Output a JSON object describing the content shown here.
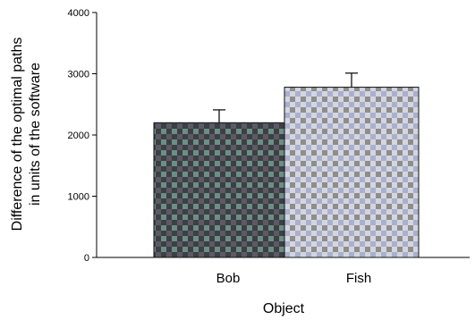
{
  "chart_data": {
    "type": "bar",
    "categories": [
      "Bob",
      "Fish"
    ],
    "values": [
      2200,
      2780
    ],
    "errors": [
      210,
      230
    ],
    "xlabel": "Object",
    "ylabel_line1": "Difference of the optimal paths",
    "ylabel_line2": "in units of the software",
    "ylim": [
      0,
      4000
    ],
    "yticks": [
      "0",
      "1000",
      "2000",
      "3000",
      "4000"
    ],
    "grid": false,
    "legend": "none",
    "colors": {
      "bob_fill_dark": "#4a4a4a",
      "bob_fill_light": "#5e8a86",
      "fish_fill_dark": "#8c8c8c",
      "fish_fill_light": "#c9ccd8"
    }
  }
}
